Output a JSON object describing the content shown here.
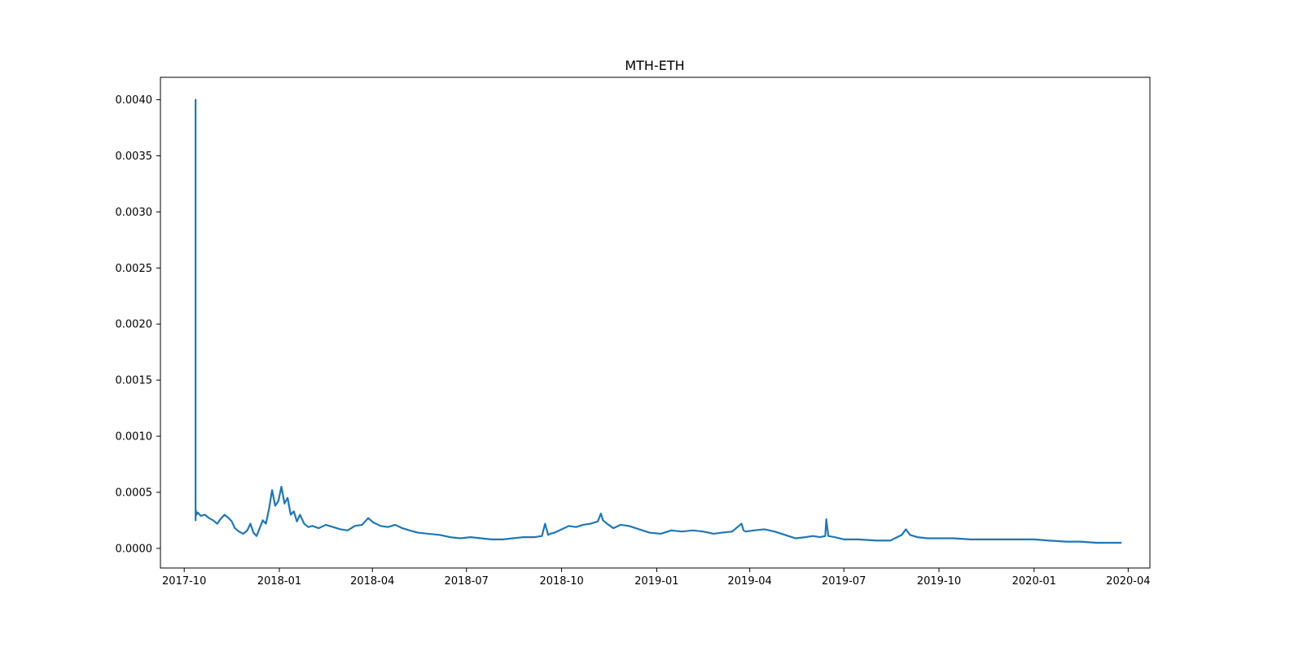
{
  "chart_data": {
    "type": "line",
    "title": "MTH-ETH",
    "xlabel": "",
    "ylabel": "",
    "x_axis_type": "date",
    "xlim": [
      "2017-09-08",
      "2020-04-22"
    ],
    "ylim": [
      -0.000175,
      0.0042
    ],
    "x_ticks": [
      "2017-10",
      "2018-01",
      "2018-04",
      "2018-07",
      "2018-10",
      "2019-01",
      "2019-04",
      "2019-07",
      "2019-10",
      "2020-01",
      "2020-04"
    ],
    "y_ticks": [
      "0.0000",
      "0.0005",
      "0.0010",
      "0.0015",
      "0.0020",
      "0.0025",
      "0.0030",
      "0.0035",
      "0.0040"
    ],
    "grid": false,
    "legend": "none",
    "line_color": "#1f77b4",
    "series": [
      {
        "x": [
          "2017-10-12",
          "2017-10-12",
          "2017-10-12",
          "2017-10-13",
          "2017-10-14",
          "2017-10-17",
          "2017-10-21",
          "2017-10-25",
          "2017-10-29",
          "2017-11-02",
          "2017-11-05",
          "2017-11-09",
          "2017-11-13",
          "2017-11-16",
          "2017-11-19",
          "2017-11-23",
          "2017-11-27",
          "2017-12-01",
          "2017-12-04",
          "2017-12-07",
          "2017-12-10",
          "2017-12-13",
          "2017-12-16",
          "2017-12-19",
          "2017-12-22",
          "2017-12-25",
          "2017-12-28",
          "2017-12-31",
          "2018-01-03",
          "2018-01-06",
          "2018-01-09",
          "2018-01-12",
          "2018-01-15",
          "2018-01-18",
          "2018-01-21",
          "2018-01-25",
          "2018-01-29",
          "2018-02-02",
          "2018-02-08",
          "2018-02-15",
          "2018-02-22",
          "2018-03-01",
          "2018-03-08",
          "2018-03-15",
          "2018-03-22",
          "2018-03-28",
          "2018-04-02",
          "2018-04-09",
          "2018-04-16",
          "2018-04-23",
          "2018-04-30",
          "2018-05-07",
          "2018-05-15",
          "2018-05-25",
          "2018-06-05",
          "2018-06-15",
          "2018-06-25",
          "2018-07-05",
          "2018-07-15",
          "2018-07-25",
          "2018-08-05",
          "2018-08-15",
          "2018-08-25",
          "2018-09-05",
          "2018-09-12",
          "2018-09-15",
          "2018-09-18",
          "2018-09-20",
          "2018-09-24",
          "2018-10-01",
          "2018-10-08",
          "2018-10-15",
          "2018-10-22",
          "2018-10-29",
          "2018-11-05",
          "2018-11-08",
          "2018-11-10",
          "2018-11-14",
          "2018-11-20",
          "2018-11-27",
          "2018-12-05",
          "2018-12-15",
          "2018-12-25",
          "2019-01-05",
          "2019-01-15",
          "2019-01-25",
          "2019-02-05",
          "2019-02-15",
          "2019-02-25",
          "2019-03-05",
          "2019-03-15",
          "2019-03-24",
          "2019-03-26",
          "2019-03-28",
          "2019-04-05",
          "2019-04-15",
          "2019-04-25",
          "2019-05-05",
          "2019-05-15",
          "2019-05-25",
          "2019-06-01",
          "2019-06-08",
          "2019-06-13",
          "2019-06-14",
          "2019-06-16",
          "2019-06-22",
          "2019-07-01",
          "2019-07-15",
          "2019-08-01",
          "2019-08-15",
          "2019-08-26",
          "2019-08-30",
          "2019-09-03",
          "2019-09-10",
          "2019-09-20",
          "2019-10-01",
          "2019-10-15",
          "2019-11-01",
          "2019-11-15",
          "2019-12-01",
          "2019-12-15",
          "2020-01-01",
          "2020-01-15",
          "2020-02-01",
          "2020-02-15",
          "2020-03-01",
          "2020-03-15",
          "2020-03-25"
        ],
        "y": [
          0.00025,
          0.004,
          0.00035,
          0.0003,
          0.00032,
          0.00029,
          0.0003,
          0.00027,
          0.00025,
          0.00022,
          0.00026,
          0.0003,
          0.00027,
          0.00024,
          0.00018,
          0.00015,
          0.00013,
          0.00016,
          0.00022,
          0.00014,
          0.00011,
          0.00018,
          0.00025,
          0.00022,
          0.00035,
          0.00052,
          0.00038,
          0.00042,
          0.00055,
          0.0004,
          0.00045,
          0.0003,
          0.00033,
          0.00024,
          0.0003,
          0.00022,
          0.00019,
          0.0002,
          0.00018,
          0.00021,
          0.00019,
          0.00017,
          0.00016,
          0.0002,
          0.00021,
          0.00027,
          0.00023,
          0.0002,
          0.00019,
          0.00021,
          0.00018,
          0.00016,
          0.00014,
          0.00013,
          0.00012,
          0.0001,
          9e-05,
          0.0001,
          9e-05,
          8e-05,
          8e-05,
          9e-05,
          0.0001,
          0.0001,
          0.00011,
          0.00022,
          0.00012,
          0.00013,
          0.00014,
          0.00017,
          0.0002,
          0.00019,
          0.00021,
          0.00022,
          0.00024,
          0.00031,
          0.00025,
          0.00022,
          0.00018,
          0.00021,
          0.0002,
          0.00017,
          0.00014,
          0.00013,
          0.00016,
          0.00015,
          0.00016,
          0.00015,
          0.00013,
          0.00014,
          0.00015,
          0.00022,
          0.00016,
          0.00015,
          0.00016,
          0.00017,
          0.00015,
          0.00012,
          9e-05,
          0.0001,
          0.00011,
          0.0001,
          0.00011,
          0.00026,
          0.00011,
          0.0001,
          8e-05,
          8e-05,
          7e-05,
          7e-05,
          0.00012,
          0.00017,
          0.00012,
          0.0001,
          9e-05,
          9e-05,
          9e-05,
          8e-05,
          8e-05,
          8e-05,
          8e-05,
          8e-05,
          7e-05,
          6e-05,
          6e-05,
          5e-05,
          5e-05,
          5e-05
        ]
      }
    ]
  }
}
